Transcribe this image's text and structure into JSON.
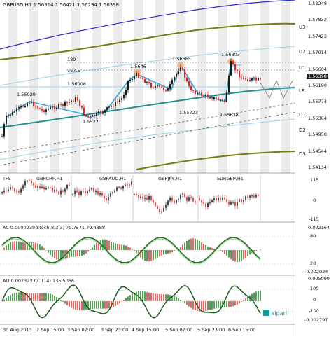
{
  "window": {
    "symbol_line": "GBPUSD,H1",
    "ohlc": "1.56314 1.56421 1.56294 1.56398"
  },
  "main_price_axis": [
    "1.58248",
    "1.57832",
    "1.57423",
    "1.57014",
    "1.56604",
    "1.56190",
    "1.55774",
    "1.55364",
    "1.54950",
    "1.54544",
    "1.54134"
  ],
  "current_price": "1.56398",
  "levels": [
    "U3",
    "U2",
    "U1",
    "LB",
    "D1",
    "D2",
    "D3"
  ],
  "annotations": [
    "1.5646",
    "1.56665",
    "1.56803",
    "1.55929",
    "1.56008",
    "1.5522",
    "1.55723",
    "1.55638",
    "189",
    "157.5"
  ],
  "tfs_panel": {
    "label": "TFS",
    "symbols": [
      "GBPCHF,H1",
      "GBPAUD,H1",
      "GBPJPY,H1",
      "EURGBP,H1"
    ],
    "axis": [
      "115",
      "0",
      "-115"
    ]
  },
  "ac_panel": {
    "header": "AC 0.0000239  Stoch(8,3,3) 79.7571 79.4388",
    "axis": [
      "0.002164",
      "80",
      "20",
      "-0.002024"
    ]
  },
  "ao_panel": {
    "header": "AO 0.002323  CCI(14) 135.5066",
    "axis": [
      "0.005999",
      "100",
      "0",
      "-100",
      "-0.002797"
    ]
  },
  "time_axis": [
    "30 Aug 2013",
    "2 Sep 15:00",
    "3 Sep 07:00",
    "3 Sep 23:00",
    "4 Sep 15:00",
    "5 Sep 07:00",
    "5 Sep 23:00",
    "6 Sep 15:00"
  ],
  "brand": "alpari",
  "colors": {
    "bull": "#1a1a1a",
    "bear": "#dd2222",
    "teal": "#1f8e8e",
    "olive": "#7a7a10",
    "blue_band": "#2a2acc",
    "zigzag": "#33aadd",
    "stoch": "#1f6f1f",
    "osc_green": "#2d8a2d",
    "osc_red": "#dd4444"
  },
  "chart_data": [
    {
      "type": "candlestick",
      "title": "GBPUSD,H1",
      "ylim": [
        1.54134,
        1.58248
      ],
      "x": [
        "30 Aug 2013",
        "2 Sep 15:00",
        "3 Sep 07:00",
        "3 Sep 23:00",
        "4 Sep 15:00",
        "5 Sep 07:00",
        "5 Sep 23:00",
        "6 Sep 15:00"
      ],
      "swing_points": [
        {
          "label": "1.55929",
          "value": 1.55929
        },
        {
          "label": "1.56008",
          "value": 1.56008
        },
        {
          "label": "1.5522",
          "value": 1.5522
        },
        {
          "label": "1.5646",
          "value": 1.5646
        },
        {
          "label": "1.56665",
          "value": 1.56665
        },
        {
          "label": "1.55723",
          "value": 1.55723
        },
        {
          "label": "1.55638",
          "value": 1.55638
        },
        {
          "label": "1.56803",
          "value": 1.56803
        }
      ],
      "last": 1.56398
    },
    {
      "type": "bar",
      "title": "TFS",
      "ylim": [
        -115,
        115
      ]
    },
    {
      "type": "bar",
      "title": "AC / Stoch(8,3,3)",
      "values": {
        "AC": 2.39e-05,
        "Stoch_main": 79.7571,
        "Stoch_signal": 79.4388
      },
      "ylim": [
        -0.002024,
        0.002164
      ]
    },
    {
      "type": "bar",
      "title": "AO / CCI(14)",
      "values": {
        "AO": 0.002323,
        "CCI": 135.5066
      },
      "ylim": [
        -0.002797,
        0.005999
      ]
    }
  ]
}
